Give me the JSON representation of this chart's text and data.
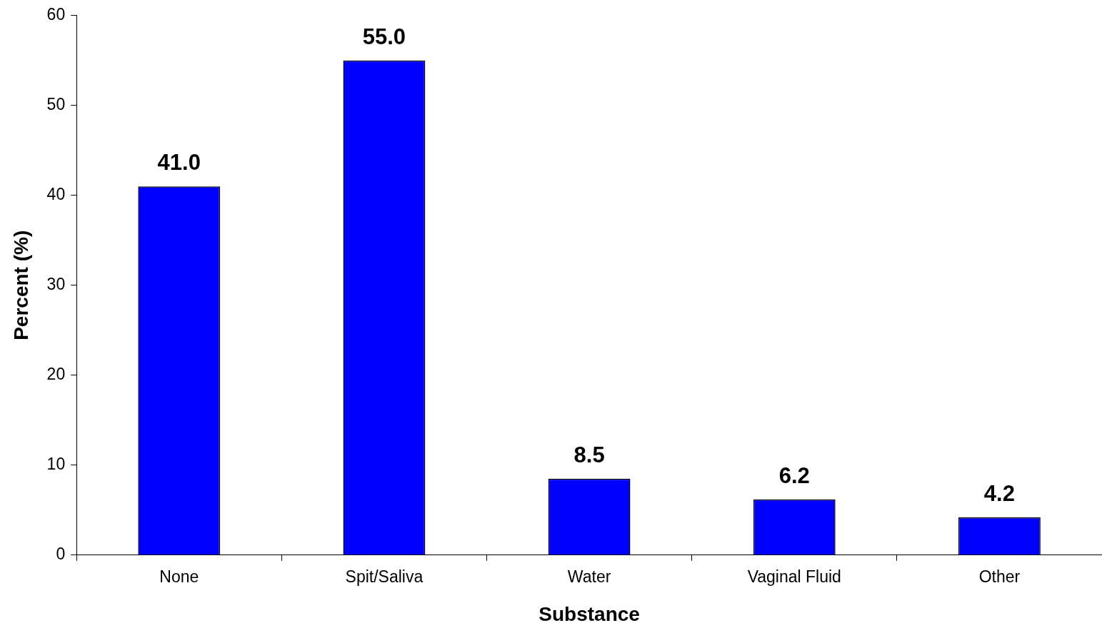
{
  "chart_data": {
    "type": "bar",
    "xlabel": "Substance",
    "ylabel": "Percent (%)",
    "categories": [
      "None",
      "Spit/Saliva",
      "Water",
      "Vaginal Fluid",
      "Other"
    ],
    "values": [
      41.0,
      55.0,
      8.5,
      6.2,
      4.2
    ],
    "value_labels": [
      "41.0",
      "55.0",
      "8.5",
      "6.2",
      "4.2"
    ],
    "color": "#0000ff",
    "ylim": [
      0,
      60
    ],
    "yticks": [
      0,
      10,
      20,
      30,
      40,
      50,
      60
    ],
    "grid": false,
    "legend": false
  }
}
